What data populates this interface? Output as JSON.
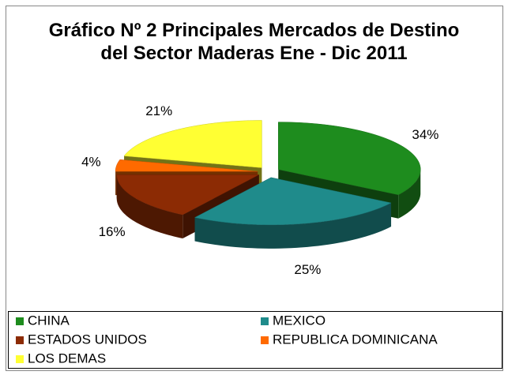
{
  "chart_data": {
    "type": "pie3d",
    "title": "Gráfico Nº 2 Principales Mercados de Destino del Sector Maderas Ene - Dic 2011",
    "categories": [
      "CHINA",
      "MEXICO",
      "ESTADOS UNIDOS",
      "REPUBLICA DOMINICANA",
      "LOS DEMAS"
    ],
    "values": [
      34,
      25,
      16,
      4,
      21
    ],
    "value_labels": [
      "34%",
      "25%",
      "16%",
      "4%",
      "21%"
    ],
    "colors": [
      "#1e8c1e",
      "#1f8b8b",
      "#8c2b04",
      "#ff6a00",
      "#ffff33"
    ],
    "legend": "bottom"
  }
}
